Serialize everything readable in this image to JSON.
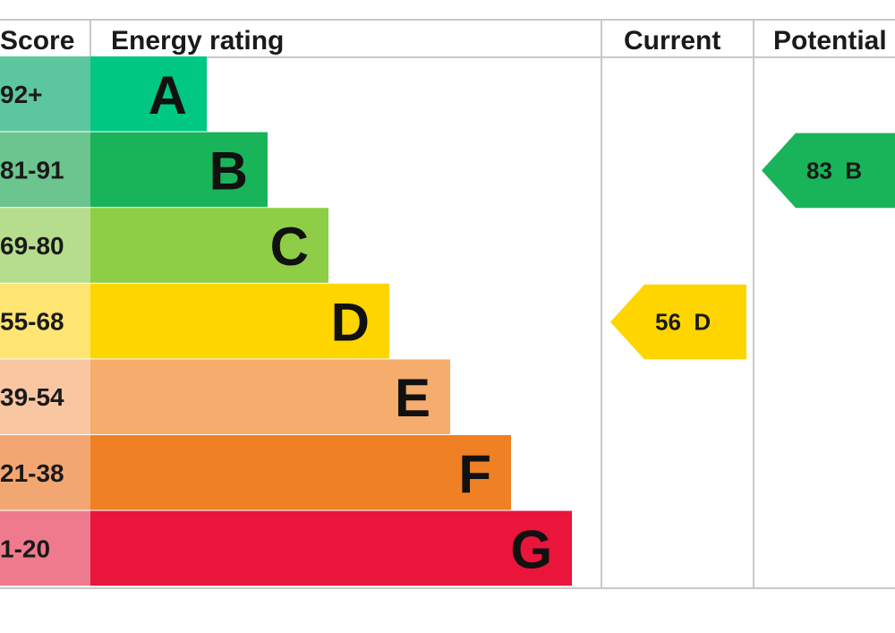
{
  "chart_data": {
    "type": "bar",
    "headers": {
      "score": "Score",
      "rating": "Energy rating",
      "current": "Current",
      "potential": "Potential"
    },
    "categories": [
      "A",
      "B",
      "C",
      "D",
      "E",
      "F",
      "G"
    ],
    "bands": [
      {
        "letter": "A",
        "range": "92+",
        "color": "#00c781",
        "score_bg": "#5cc79e"
      },
      {
        "letter": "B",
        "range": "81-91",
        "color": "#19b459",
        "score_bg": "#6cc48e"
      },
      {
        "letter": "C",
        "range": "69-80",
        "color": "#8dce46",
        "score_bg": "#b6dd8d"
      },
      {
        "letter": "D",
        "range": "55-68",
        "color": "#ffd500",
        "score_bg": "#ffe572"
      },
      {
        "letter": "E",
        "range": "39-54",
        "color": "#f6ac6c",
        "score_bg": "#f8c7a1"
      },
      {
        "letter": "F",
        "range": "21-38",
        "color": "#ef8023",
        "score_bg": "#f2a772"
      },
      {
        "letter": "G",
        "range": "1-20",
        "color": "#e9153b",
        "score_bg": "#ef7a8e"
      }
    ],
    "current": {
      "value": 56,
      "band": "D",
      "label": "56  D",
      "color": "#ffd500"
    },
    "potential": {
      "value": 83,
      "band": "B",
      "label": "83  B",
      "color": "#19b459"
    }
  }
}
